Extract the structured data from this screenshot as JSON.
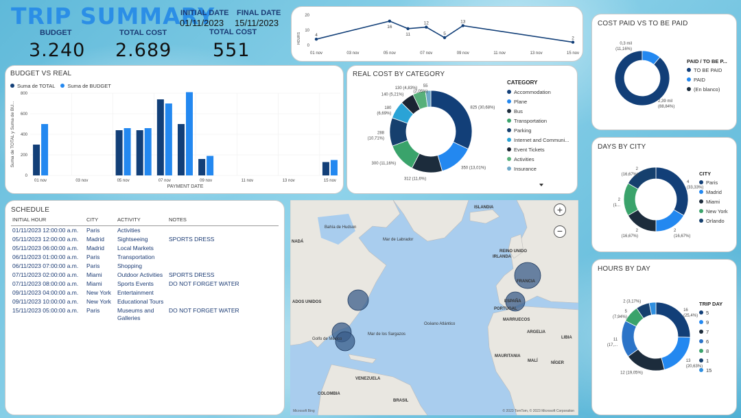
{
  "header": {
    "title": "TRIP SUMMARY",
    "budget_label": "BUDGET",
    "budget_value": "3.240",
    "total_cost_label": "TOTAL COST",
    "total_cost_value": "2.689",
    "initial_date_label": "INITIAL DATE",
    "initial_date_value": "01/11/2023",
    "final_date_label": "FINAL DATE",
    "final_date_value": "15/11/2023",
    "total_cost2_label": "TOTAL COST",
    "total_cost2_value": "551"
  },
  "colors": {
    "navy": "#123f78",
    "blue": "#2388f0",
    "dark": "#1a2a3a",
    "green": "#3aa36b",
    "sky": "#2aa3d6",
    "gray": "#aaaaaa",
    "pink": "#e8a0b0"
  },
  "hours_line": {
    "ylabel": "HOURS",
    "yticks": [
      "20",
      "10",
      "0"
    ],
    "xticks": [
      "01 nov",
      "03 nov",
      "05 nov",
      "07 nov",
      "09 nov",
      "11 nov",
      "13 nov",
      "15 nov"
    ],
    "points": [
      {
        "day": 1,
        "value": 4
      },
      {
        "day": 5,
        "value": 16
      },
      {
        "day": 6,
        "value": 11
      },
      {
        "day": 7,
        "value": 12
      },
      {
        "day": 8,
        "value": 5
      },
      {
        "day": 9,
        "value": 13
      },
      {
        "day": 15,
        "value": 2
      }
    ],
    "ymax": 20
  },
  "budget_vs_real": {
    "title": "BUDGET VS REAL",
    "legend": [
      "Suma de TOTAL",
      "Suma de BUDGET"
    ],
    "ylabel": "Suma de TOTAL y Suma de BU...",
    "xlabel": "PAYMENT DATE",
    "yticks": [
      "800",
      "600",
      "400",
      "200",
      "0"
    ],
    "xticks": [
      "01 nov",
      "03 nov",
      "05 nov",
      "07 nov",
      "09 nov",
      "11 nov",
      "13 nov",
      "15 nov"
    ]
  },
  "chart_data": [
    {
      "type": "bar",
      "title": "BUDGET VS REAL",
      "xlabel": "PAYMENT DATE",
      "ylabel": "Suma de TOTAL y Suma de BU...",
      "ylim": [
        0,
        800
      ],
      "x": [
        1,
        5,
        6,
        7,
        8,
        9,
        15
      ],
      "series": [
        {
          "name": "Suma de TOTAL",
          "values": [
            300,
            440,
            440,
            740,
            500,
            160,
            130
          ]
        },
        {
          "name": "Suma de BUDGET",
          "values": [
            500,
            460,
            460,
            700,
            810,
            190,
            150
          ]
        }
      ]
    },
    {
      "type": "line",
      "ylabel": "HOURS",
      "x": [
        1,
        5,
        6,
        7,
        8,
        9,
        15
      ],
      "values": [
        4,
        16,
        11,
        12,
        5,
        13,
        2
      ],
      "ylim": [
        0,
        20
      ]
    },
    {
      "type": "pie",
      "title": "REAL COST BY CATEGORY",
      "categories": [
        "Accommodation",
        "Plane",
        "Bus",
        "Transportation",
        "Parking",
        "Internet and Communi...",
        "Event Tickets",
        "Activities",
        "Insurance"
      ],
      "values": [
        825,
        350,
        312,
        300,
        288,
        180,
        140,
        130,
        55
      ]
    },
    {
      "type": "pie",
      "title": "COST PAID VS TO BE PAID",
      "categories": [
        "TO BE PAID",
        "PAID",
        "(En blanco)"
      ],
      "values": [
        2390,
        300,
        0
      ]
    },
    {
      "type": "pie",
      "title": "DAYS BY CITY",
      "categories": [
        "Paris",
        "Madrid",
        "Miami",
        "New York",
        "Orlando"
      ],
      "values": [
        4,
        2,
        2,
        2,
        2
      ]
    },
    {
      "type": "pie",
      "title": "HOURS BY DAY",
      "categories": [
        "5",
        "9",
        "7",
        "6",
        "8",
        "1",
        "15"
      ],
      "values": [
        16,
        13,
        12,
        11,
        5,
        4,
        2
      ]
    }
  ],
  "real_cost": {
    "title": "REAL COST BY CATEGORY",
    "legend_title": "CATEGORY",
    "categories": [
      "Accommodation",
      "Plane",
      "Bus",
      "Transportation",
      "Parking",
      "Internet and Communi...",
      "Event Tickets",
      "Activities",
      "Insurance"
    ],
    "labels": [
      "825 (30,68%)",
      "350 (13,01%)",
      "312 (11,6%)",
      "300 (11,16%)",
      "288\n(10,71%)",
      "180\n(6,69%)",
      "140 (5,21%)",
      "130 (4,83%)",
      "55\n(2,05%)"
    ],
    "more_icon": "triangle-down-icon"
  },
  "paid": {
    "title": "COST PAID VS TO BE PAID",
    "legend_title": "PAID / TO BE P...",
    "items": [
      "TO BE PAID",
      "PAID",
      "(En blanco)"
    ],
    "label_big": "2,39 mil\n(88,84%)",
    "label_small": "0,3 mil\n(11,16%)"
  },
  "days_city": {
    "title": "DAYS BY CITY",
    "legend_title": "CITY",
    "items": [
      "Paris",
      "Madrid",
      "Miami",
      "New York",
      "Orlando"
    ],
    "labels": [
      "4\n(33,33%)",
      "2\n(16,67%)",
      "2\n(16,67%)",
      "2\n(1...",
      "2\n(16,67%)"
    ]
  },
  "hours_day": {
    "title": "HOURS BY DAY",
    "legend_title": "TRIP DAY",
    "items": [
      "5",
      "9",
      "7",
      "6",
      "8",
      "1",
      "15"
    ],
    "labels": [
      "16\n(25,4%)",
      "13\n(20,63%)",
      "12 (19,05%)",
      "11\n(17,...",
      "5\n(7,94%)",
      "2 (3,17%)"
    ]
  },
  "schedule": {
    "title": "SCHEDULE",
    "columns": [
      "INITIAL HOUR",
      "CITY",
      "ACTIVITY",
      "NOTES"
    ],
    "rows": [
      [
        "01/11/2023 12:00:00 a.m.",
        "Paris",
        "Activities",
        ""
      ],
      [
        "05/11/2023 12:00:00 a.m.",
        "Madrid",
        "Sightseeing",
        "SPORTS DRESS"
      ],
      [
        "05/11/2023 06:00:00 a.m.",
        "Madrid",
        "Local Markets",
        ""
      ],
      [
        "06/11/2023 01:00:00 a.m.",
        "Paris",
        "Transportation",
        ""
      ],
      [
        "06/11/2023 07:00:00 a.m.",
        "Paris",
        "Shopping",
        ""
      ],
      [
        "07/11/2023 02:00:00 a.m.",
        "Miami",
        "Outdoor Activities",
        "SPORTS DRESS"
      ],
      [
        "07/11/2023 08:00:00 a.m.",
        "Miami",
        "Sports Events",
        "DO NOT FORGET WATER"
      ],
      [
        "09/11/2023 04:00:00 a.m.",
        "New York",
        "Entertainment",
        ""
      ],
      [
        "09/11/2023 10:00:00 a.m.",
        "New York",
        "Educational Tours",
        ""
      ],
      [
        "15/11/2023 05:00:00 a.m.",
        "Paris",
        "Museums and Galleries",
        "DO NOT FORGET WATER"
      ]
    ]
  },
  "map": {
    "labels": [
      "ISLANDIA",
      "Bahía de Hudson",
      "NADÁ",
      "Mar de Labrador",
      "REINO UNIDO",
      "IRLANDA",
      "FRANCIA",
      "ESPAÑA",
      "PORTUGAL",
      "MARRUECOS",
      "ARGELIA",
      "LIBIA",
      "ADOS UNIDOS",
      "Océano Atlántico",
      "Mar de los Sargazos",
      "Golfo de México",
      "MAURITANIA",
      "MALÍ",
      "NÍGER",
      "VENEZUELA",
      "COLOMBIA",
      "BRASIL"
    ],
    "zoom_in": "+",
    "zoom_out": "−",
    "attribution": "© 2023 TomTom, © 2023 Microsoft Corporation",
    "brand": "Microsoft Bing"
  }
}
